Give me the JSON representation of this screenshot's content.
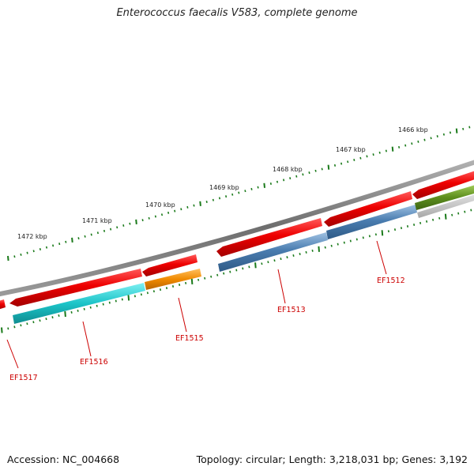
{
  "title": "Enterococcus faecalis V583, complete genome",
  "footer": {
    "accession": "Accession: NC_004668",
    "summary": "Topology: circular; Length: 3,218,031 bp; Genes: 3,192"
  },
  "colors": {
    "backbone": "#777777",
    "cds_red": "#e00000",
    "tick_green": "#1a7a1a",
    "label_red": "#cc0000",
    "gene_ef1517": "#cc2020",
    "gene_ef1516": "#1cc4c8",
    "gene_ef1515": "#f08a00",
    "gene_ef1514": "#4a7db0",
    "gene_ef1513": "#4a7db0",
    "gene_ef1512": "#4a7db0",
    "gene_ef1511": "#5e8f1e"
  },
  "ruler": {
    "labels": [
      "1472 kbp",
      "1471 kbp",
      "1470 kbp",
      "1469 kbp",
      "1468 kbp",
      "1467 kbp",
      "1466 kbp"
    ]
  },
  "genes": [
    {
      "id": "EF1517",
      "label": "EF1517",
      "color_key": "gene_ef1517"
    },
    {
      "id": "EF1516",
      "label": "EF1516",
      "color_key": "gene_ef1516"
    },
    {
      "id": "EF1515",
      "label": "EF1515",
      "color_key": "gene_ef1515"
    },
    {
      "id": "EF1514",
      "label": "",
      "color_key": "gene_ef1514"
    },
    {
      "id": "EF1513",
      "label": "EF1513",
      "color_key": "gene_ef1513"
    },
    {
      "id": "EF1512",
      "label": "EF1512",
      "color_key": "gene_ef1512"
    },
    {
      "id": "EF1511",
      "label": "",
      "color_key": "gene_ef1511"
    }
  ]
}
